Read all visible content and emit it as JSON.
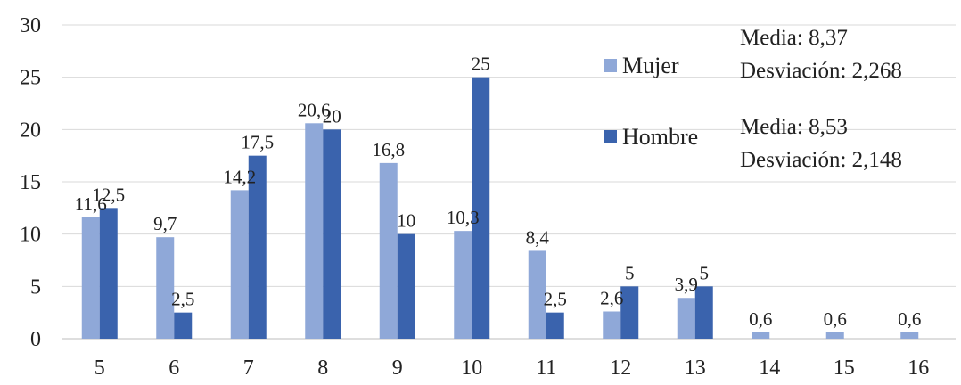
{
  "chart_data": {
    "type": "bar",
    "categories": [
      "5",
      "6",
      "7",
      "8",
      "9",
      "10",
      "11",
      "12",
      "13",
      "14",
      "15",
      "16"
    ],
    "series": [
      {
        "name": "Mujer",
        "color": "#8fa8d8",
        "values": [
          11.6,
          9.7,
          14.2,
          20.6,
          16.8,
          10.3,
          8.4,
          2.6,
          3.9,
          0.6,
          0.6,
          0.6
        ],
        "labels": [
          "11,6",
          "9,7",
          "14,2",
          "20,6",
          "16,8",
          "10,3",
          "8,4",
          "2,6",
          "3,9",
          "0,6",
          "0,6",
          "0,6"
        ]
      },
      {
        "name": "Hombre",
        "color": "#3a63ad",
        "values": [
          12.5,
          2.5,
          17.5,
          20,
          10,
          25,
          2.5,
          5,
          5,
          null,
          null,
          null
        ],
        "labels": [
          "12,5",
          "2,5",
          "17,5",
          "20",
          "10",
          "25",
          "2,5",
          "5",
          "5",
          "",
          "",
          ""
        ]
      }
    ],
    "yticks": [
      "0",
      "5",
      "10",
      "15",
      "20",
      "25",
      "30"
    ],
    "ylim": [
      0,
      30
    ],
    "grid": true,
    "legend": "right",
    "annotations": [
      {
        "line1": "Media: 8,37",
        "line2": "Desviación: 2,268"
      },
      {
        "line1": "Media: 8,53",
        "line2": "Desviación: 2,148"
      }
    ]
  }
}
